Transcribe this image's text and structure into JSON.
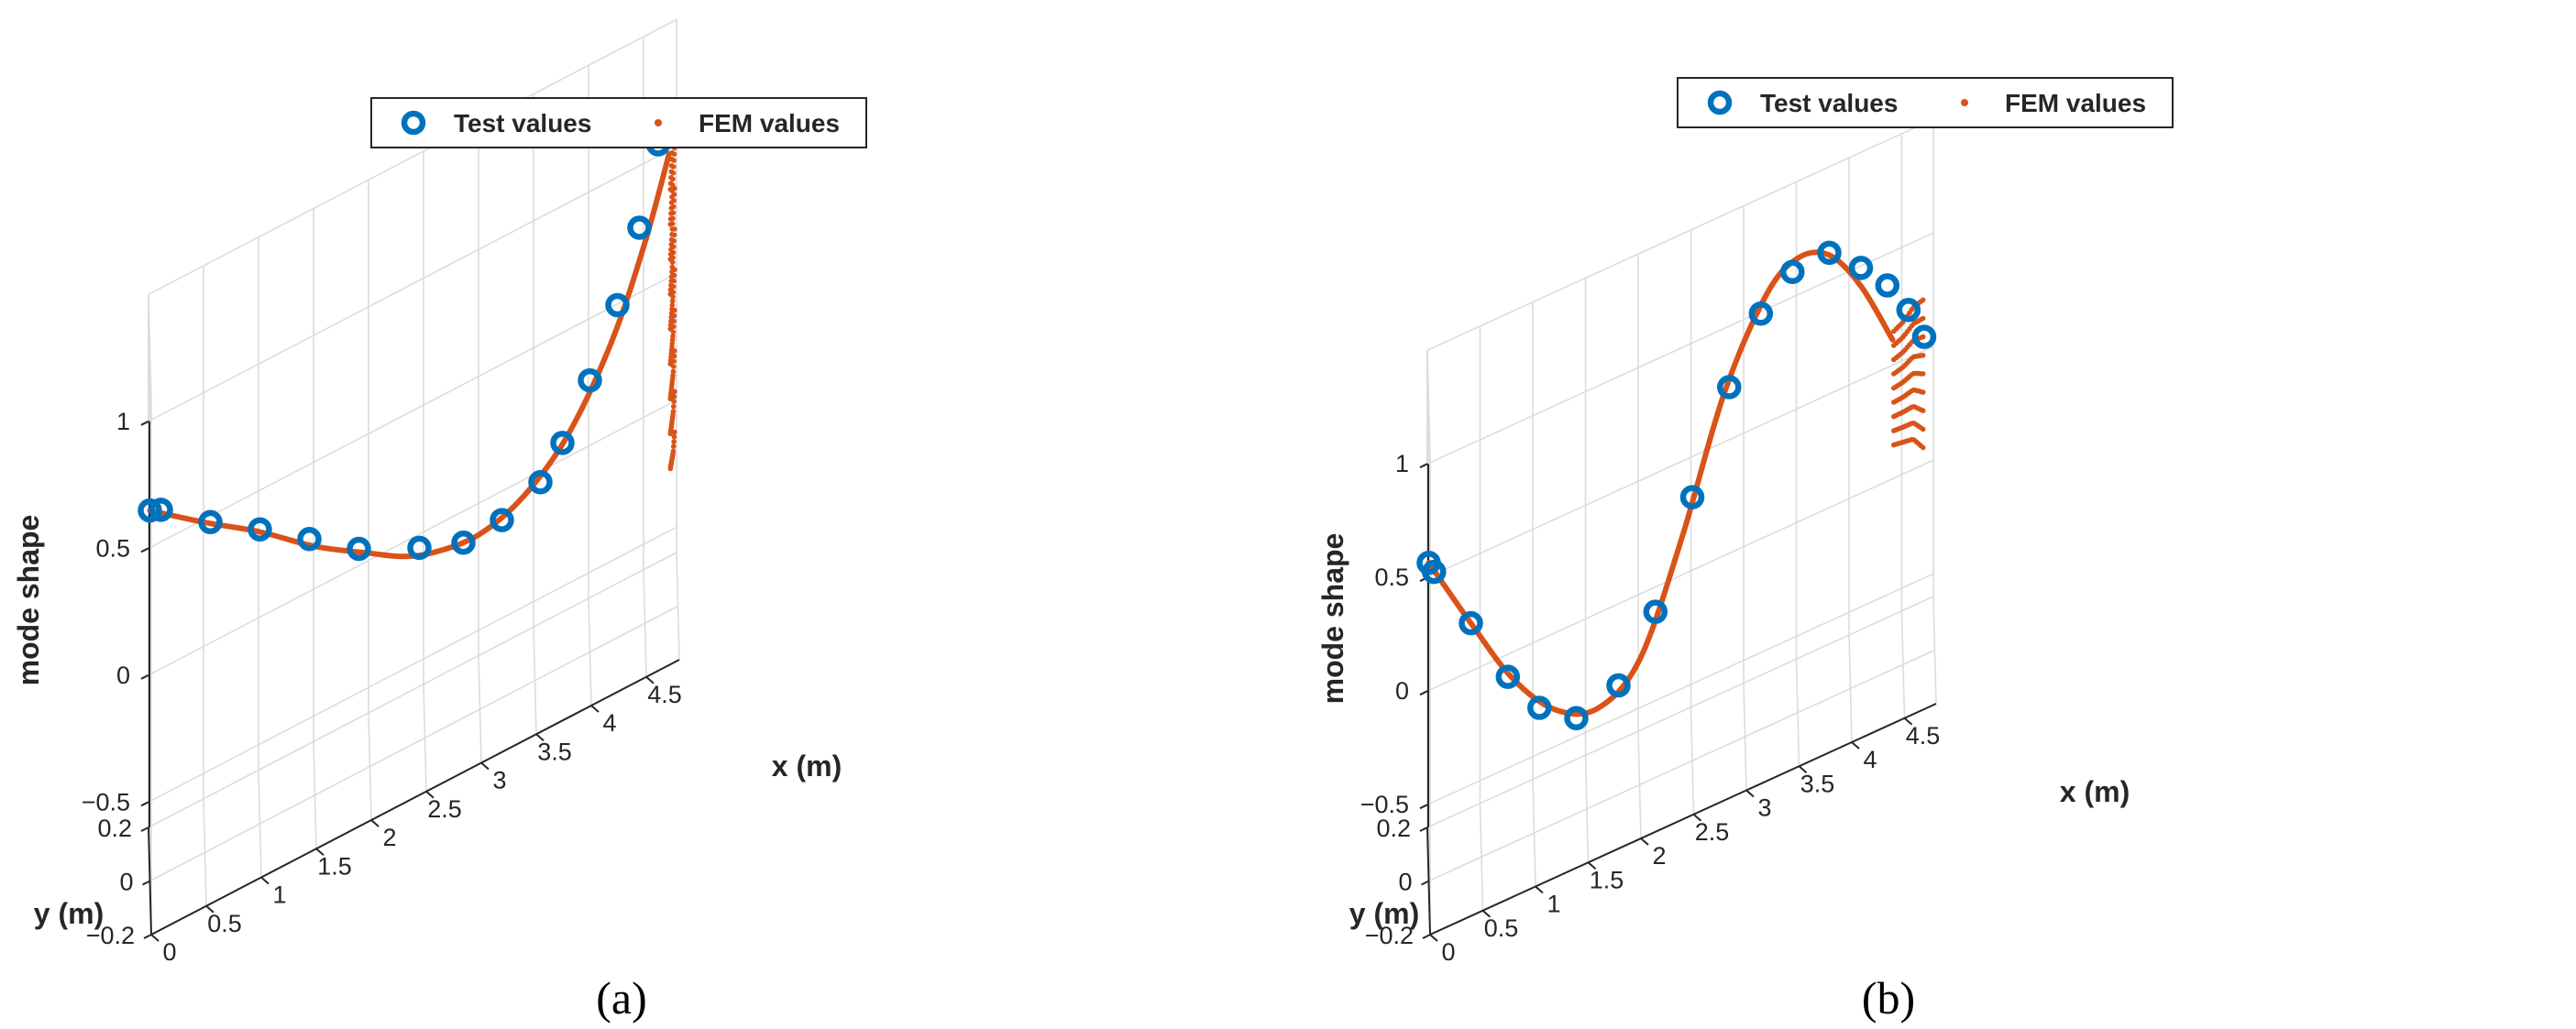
{
  "chart_data": [
    {
      "type": "scatter",
      "panel": "a",
      "caption": "(a)",
      "xlabel": "x (m)",
      "ylabel": "y (m)",
      "zlabel": "mode shape",
      "xlim": [
        0,
        4.8
      ],
      "ylim": [
        -0.2,
        0.2
      ],
      "zlim": [
        -0.6,
        1.0
      ],
      "xticks": [
        "0",
        "0.5",
        "1",
        "1.5",
        "2",
        "2.5",
        "3",
        "3.5",
        "4",
        "4.5"
      ],
      "yticks": [
        "0.2",
        "0",
        "−0.2"
      ],
      "zticks": [
        "1",
        "0.5",
        "0",
        "−0.5"
      ],
      "legend": {
        "position": "top",
        "entries": [
          "Test values",
          "FEM values"
        ]
      },
      "series": [
        {
          "name": "Test values",
          "color": "#0072BD",
          "marker": "circle",
          "x": [
            0.0,
            0.1,
            0.55,
            1.0,
            1.45,
            1.9,
            2.45,
            2.85,
            3.2,
            3.55,
            3.75,
            4.0,
            4.25,
            4.45,
            4.62
          ],
          "y": [
            0.0,
            0.0,
            0.0,
            0.0,
            0.0,
            0.0,
            0.0,
            0.0,
            0.0,
            0.0,
            0.0,
            0.0,
            0.0,
            0.0,
            0.0
          ],
          "z": [
            0.86,
            0.84,
            0.69,
            0.56,
            0.42,
            0.28,
            0.16,
            0.09,
            0.1,
            0.17,
            0.28,
            0.47,
            0.71,
            0.97,
            1.26
          ]
        },
        {
          "name": "FEM values",
          "color": "#D95319",
          "marker": "dot",
          "x": [
            0.0,
            0.5,
            1.0,
            1.5,
            2.0,
            2.3,
            2.6,
            3.0,
            3.4,
            3.8,
            4.2,
            4.5,
            4.72
          ],
          "z": [
            0.86,
            0.7,
            0.55,
            0.38,
            0.24,
            0.16,
            0.11,
            0.09,
            0.15,
            0.3,
            0.58,
            0.9,
            1.2
          ],
          "tip": {
            "x": [
              4.72,
              4.74,
              4.76,
              4.78
            ],
            "z_low": [
              0.15,
              0.05,
              -0.05,
              -0.1
            ],
            "z_high": [
              1.25,
              1.22,
              1.2,
              1.18
            ]
          }
        }
      ]
    },
    {
      "type": "scatter",
      "panel": "b",
      "caption": "(b)",
      "xlabel": "x (m)",
      "ylabel": "y (m)",
      "zlabel": "mode shape",
      "xlim": [
        0,
        4.8
      ],
      "ylim": [
        -0.2,
        0.2
      ],
      "zlim": [
        -0.6,
        1.0
      ],
      "xticks": [
        "0",
        "0.5",
        "1",
        "1.5",
        "2",
        "2.5",
        "3",
        "3.5",
        "4",
        "4.5"
      ],
      "yticks": [
        "0.2",
        "0",
        "−0.2"
      ],
      "zticks": [
        "1",
        "0.5",
        "0",
        "−0.5"
      ],
      "legend": {
        "position": "top",
        "entries": [
          "Test values",
          "FEM values"
        ]
      },
      "series": [
        {
          "name": "Test values",
          "color": "#0072BD",
          "marker": "circle",
          "x": [
            0.0,
            0.05,
            0.4,
            0.75,
            1.05,
            1.4,
            1.8,
            2.15,
            2.5,
            2.85,
            3.15,
            3.45,
            3.8,
            4.1,
            4.35,
            4.55,
            4.7
          ],
          "y": [
            0.0,
            0.0,
            0.0,
            0.0,
            0.0,
            0.0,
            0.0,
            0.0,
            0.0,
            0.0,
            0.0,
            0.0,
            0.0,
            0.0,
            0.0,
            0.0,
            0.0
          ],
          "z": [
            0.8,
            0.75,
            0.45,
            0.14,
            -0.06,
            -0.18,
            -0.12,
            0.13,
            0.56,
            0.97,
            1.23,
            1.35,
            1.36,
            1.23,
            1.1,
            0.95,
            0.8
          ]
        },
        {
          "name": "FEM values",
          "color": "#D95319",
          "marker": "dot",
          "x": [
            0.0,
            0.4,
            0.8,
            1.2,
            1.6,
            2.0,
            2.4,
            2.8,
            3.2,
            3.5,
            3.8,
            4.1,
            4.4
          ],
          "z": [
            0.8,
            0.45,
            0.12,
            -0.1,
            -0.18,
            -0.05,
            0.4,
            0.95,
            1.3,
            1.4,
            1.35,
            1.15,
            0.85
          ],
          "tip": {
            "x": [
              4.4,
              4.5,
              4.6,
              4.7
            ],
            "z_low": [
              0.6,
              0.45,
              0.3,
              0.1
            ],
            "z_high": [
              1.1,
              0.98,
              0.88,
              0.75
            ]
          }
        }
      ]
    }
  ]
}
